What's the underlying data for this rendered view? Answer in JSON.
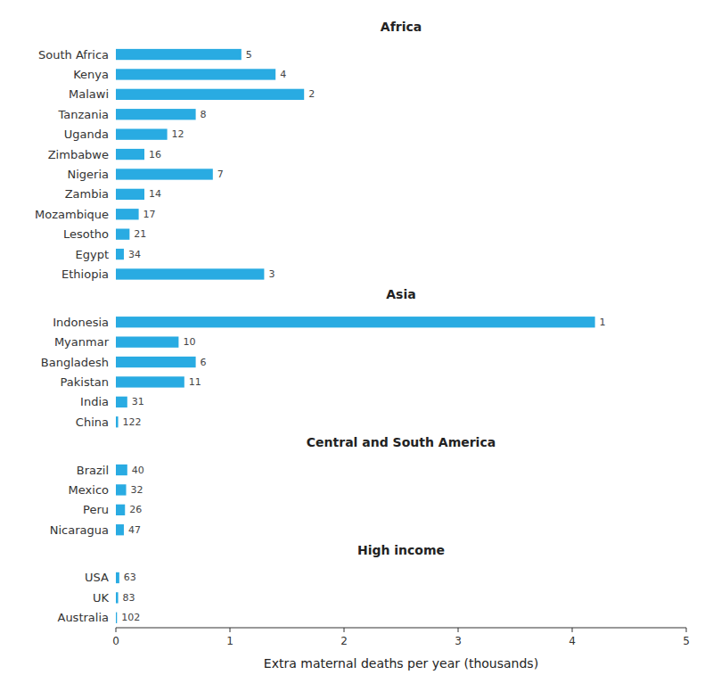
{
  "chart_data": {
    "type": "bar",
    "orientation": "horizontal",
    "color": "#29ABE2",
    "grid": false,
    "xlabel": "Extra maternal deaths per year (thousands)",
    "xlim": [
      0,
      5
    ],
    "xticks": [
      0,
      1,
      2,
      3,
      4,
      5
    ],
    "groups": [
      {
        "name": "Africa",
        "categories": [
          "South Africa",
          "Kenya",
          "Malawi",
          "Tanzania",
          "Uganda",
          "Zimbabwe",
          "Nigeria",
          "Zambia",
          "Mozambique",
          "Lesotho",
          "Egypt",
          "Ethiopia"
        ],
        "values": [
          1.1,
          1.4,
          1.65,
          0.7,
          0.45,
          0.25,
          0.85,
          0.25,
          0.2,
          0.12,
          0.07,
          1.3
        ],
        "ranks": [
          5,
          4,
          2,
          8,
          12,
          16,
          7,
          14,
          17,
          21,
          34,
          3
        ]
      },
      {
        "name": "Asia",
        "categories": [
          "Indonesia",
          "Myanmar",
          "Bangladesh",
          "Pakistan",
          "India",
          "China"
        ],
        "values": [
          4.2,
          0.55,
          0.7,
          0.6,
          0.1,
          0.02
        ],
        "ranks": [
          1,
          10,
          6,
          11,
          31,
          122
        ]
      },
      {
        "name": "Central and South America",
        "categories": [
          "Brazil",
          "Mexico",
          "Peru",
          "Nicaragua"
        ],
        "values": [
          0.1,
          0.09,
          0.08,
          0.07
        ],
        "ranks": [
          40,
          32,
          26,
          47
        ]
      },
      {
        "name": "High income",
        "categories": [
          "USA",
          "UK",
          "Australia"
        ],
        "values": [
          0.03,
          0.02,
          0.01
        ],
        "ranks": [
          63,
          83,
          102
        ]
      }
    ]
  }
}
